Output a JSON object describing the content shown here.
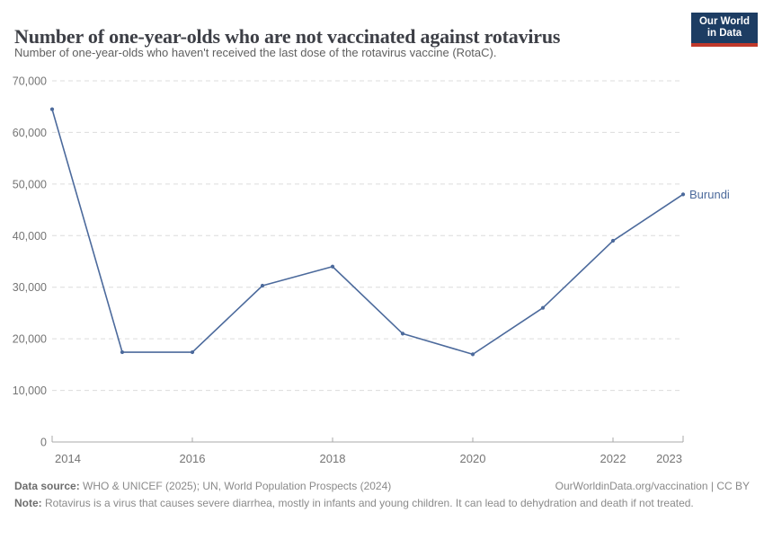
{
  "header": {
    "title": "Number of one-year-olds who are not vaccinated against rotavirus",
    "subtitle": "Number of one-year-olds who haven't received the last dose of the rotavirus vaccine (RotaC).",
    "logo": {
      "line1": "Our World",
      "line2": "in Data"
    }
  },
  "chart_data": {
    "type": "line",
    "title": "Number of one-year-olds who are not vaccinated against rotavirus",
    "x": [
      2014,
      2015,
      2016,
      2017,
      2018,
      2019,
      2020,
      2021,
      2022,
      2023
    ],
    "series": [
      {
        "name": "Burundi",
        "color": "#4c6a9c",
        "values": [
          64500,
          17400,
          17400,
          30300,
          34000,
          21000,
          17000,
          26000,
          39000,
          48000
        ]
      }
    ],
    "ylim": [
      0,
      70000
    ],
    "yticks": [
      0,
      10000,
      20000,
      30000,
      40000,
      50000,
      60000,
      70000
    ],
    "xticks": [
      2014,
      2016,
      2018,
      2020,
      2022,
      2023
    ],
    "grid": "horizontal-dashed",
    "legend": "inline-end-label",
    "xlabel": "",
    "ylabel": ""
  },
  "footer": {
    "datasource_label": "Data source:",
    "datasource_text": " WHO & UNICEF (2025); UN, World Population Prospects (2024)",
    "link_text": "OurWorldinData.org/vaccination | CC BY",
    "note_label": "Note:",
    "note_text": " Rotavirus is a virus that causes severe diarrhea, mostly in infants and young children. It can lead to dehydration and death if not treated."
  },
  "colors": {
    "line": "#4c6a9c",
    "grid": "#dcdcdc",
    "axis": "#a8a8a8",
    "tick_label": "#757575",
    "title": "#3d3f46",
    "subtitle": "#5f5f5f",
    "footer_text": "#8a8a8a",
    "logo_bg": "#1d3d63",
    "logo_red": "#c0392b"
  }
}
